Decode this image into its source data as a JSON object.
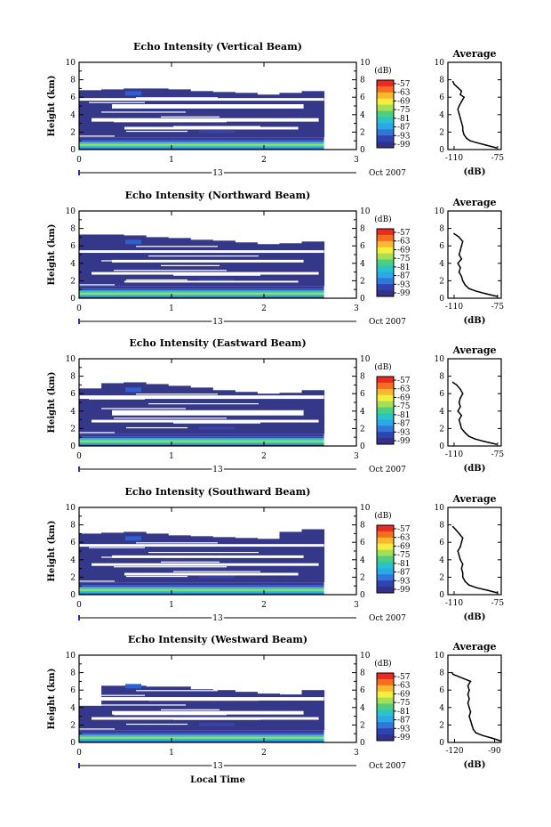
{
  "figure": {
    "xlabel": "Local Time",
    "date_label": "13",
    "month_label": "Oct 2007",
    "avg_title": "Average",
    "cbar_unit": "(dB)",
    "avg_xunit": "(dB)"
  },
  "chart_data": [
    {
      "type": "heatmap",
      "title": "Echo Intensity (Vertical Beam)",
      "ylabel": "Height (km)",
      "xlabel": "Local Time",
      "x_ticks": [
        "0",
        "1",
        "2",
        "3"
      ],
      "y_ticks": [
        "0",
        "2",
        "4",
        "6",
        "8",
        "10"
      ],
      "xlim": [
        0,
        3
      ],
      "ylim": [
        0,
        10
      ],
      "data_end_hour": 2.65,
      "colorbar": {
        "unit": "(dB)",
        "levels": [
          -57,
          -63,
          -69,
          -75,
          -81,
          -87,
          -93,
          -99
        ]
      },
      "cloud_top_km": [
        6.8,
        6.9,
        7.0,
        7.0,
        6.9,
        6.7,
        6.6,
        6.5,
        6.3,
        6.5,
        6.7
      ],
      "gaps_km": [
        [
          5.6,
          5.9
        ],
        [
          4.7,
          5.2
        ],
        [
          3.2,
          3.6
        ],
        [
          2.3,
          2.6
        ]
      ],
      "average_profile": {
        "title": "Average",
        "xlabel": "(dB)",
        "x_ticks": [
          "-110",
          "-75"
        ],
        "xlim": [
          -115,
          -72
        ],
        "y_ticks": [
          "0",
          "2",
          "4",
          "6",
          "8",
          "10"
        ],
        "height_km": [
          0.2,
          0.5,
          0.8,
          1.0,
          1.3,
          1.7,
          2.2,
          2.6,
          3.1,
          3.6,
          4.1,
          4.6,
          5.0,
          5.5,
          6.0,
          6.3,
          6.7,
          7.1,
          7.5,
          7.8
        ],
        "db": [
          -76,
          -84,
          -92,
          -97,
          -100,
          -102,
          -103,
          -103,
          -104,
          -105,
          -106,
          -107,
          -106,
          -104,
          -102,
          -105,
          -104,
          -107,
          -110,
          -111
        ]
      }
    },
    {
      "type": "heatmap",
      "title": "Echo Intensity (Northward Beam)",
      "ylabel": "Height (km)",
      "xlabel": "Local Time",
      "x_ticks": [
        "0",
        "1",
        "2",
        "3"
      ],
      "y_ticks": [
        "0",
        "2",
        "4",
        "6",
        "8",
        "10"
      ],
      "xlim": [
        0,
        3
      ],
      "ylim": [
        0,
        10
      ],
      "data_end_hour": 2.65,
      "colorbar": {
        "unit": "(dB)",
        "levels": [
          -57,
          -63,
          -69,
          -75,
          -81,
          -87,
          -93,
          -99
        ]
      },
      "cloud_top_km": [
        7.3,
        7.3,
        7.2,
        7.0,
        6.9,
        6.7,
        6.6,
        6.4,
        6.2,
        6.3,
        6.5
      ],
      "gaps_km": [
        [
          5.2,
          5.5
        ],
        [
          4.1,
          4.4
        ],
        [
          2.7,
          3.0
        ],
        [
          1.8,
          2.0
        ]
      ],
      "average_profile": {
        "title": "Average",
        "xlabel": "(dB)",
        "x_ticks": [
          "-110",
          "-75"
        ],
        "xlim": [
          -115,
          -72
        ],
        "y_ticks": [
          "0",
          "2",
          "4",
          "6",
          "8",
          "10"
        ],
        "height_km": [
          0.2,
          0.5,
          0.8,
          1.1,
          1.5,
          2.0,
          2.5,
          3.0,
          3.5,
          4.0,
          4.5,
          5.0,
          5.5,
          6.0,
          6.5,
          7.0,
          7.4
        ],
        "db": [
          -75,
          -84,
          -92,
          -98,
          -101,
          -103,
          -104,
          -106,
          -105,
          -107,
          -104,
          -106,
          -105,
          -104,
          -103,
          -106,
          -110
        ]
      }
    },
    {
      "type": "heatmap",
      "title": "Echo Intensity (Eastward Beam)",
      "ylabel": "Height (km)",
      "xlabel": "Local Time",
      "x_ticks": [
        "0",
        "1",
        "2",
        "3"
      ],
      "y_ticks": [
        "0",
        "2",
        "4",
        "6",
        "8",
        "10"
      ],
      "xlim": [
        0,
        3
      ],
      "ylim": [
        0,
        10
      ],
      "data_end_hour": 2.65,
      "colorbar": {
        "unit": "(dB)",
        "levels": [
          -57,
          -63,
          -69,
          -75,
          -81,
          -87,
          -93,
          -99
        ]
      },
      "cloud_top_km": [
        6.6,
        7.2,
        7.3,
        7.1,
        6.9,
        6.7,
        6.4,
        6.2,
        6.0,
        6.1,
        6.4
      ],
      "gaps_km": [
        [
          5.4,
          5.8
        ],
        [
          3.5,
          4.1
        ],
        [
          2.7,
          3.0
        ]
      ],
      "average_profile": {
        "title": "Average",
        "xlabel": "(dB)",
        "x_ticks": [
          "-110",
          "-75"
        ],
        "xlim": [
          -115,
          -72
        ],
        "y_ticks": [
          "0",
          "2",
          "4",
          "6",
          "8",
          "10"
        ],
        "height_km": [
          0.2,
          0.5,
          0.8,
          1.1,
          1.5,
          2.0,
          2.5,
          3.0,
          3.5,
          4.0,
          4.5,
          5.0,
          5.5,
          6.0,
          6.5,
          7.0,
          7.3
        ],
        "db": [
          -76,
          -85,
          -93,
          -98,
          -101,
          -104,
          -105,
          -106,
          -104,
          -107,
          -105,
          -106,
          -105,
          -103,
          -105,
          -108,
          -111
        ]
      }
    },
    {
      "type": "heatmap",
      "title": "Echo Intensity (Southward Beam)",
      "ylabel": "Height (km)",
      "xlabel": "Local Time",
      "x_ticks": [
        "0",
        "1",
        "2",
        "3"
      ],
      "y_ticks": [
        "0",
        "2",
        "4",
        "6",
        "8",
        "10"
      ],
      "xlim": [
        0,
        3
      ],
      "ylim": [
        0,
        10
      ],
      "data_end_hour": 2.65,
      "colorbar": {
        "unit": "(dB)",
        "levels": [
          -57,
          -63,
          -69,
          -75,
          -81,
          -87,
          -93,
          -99
        ]
      },
      "cloud_top_km": [
        7.0,
        7.1,
        7.2,
        7.0,
        6.8,
        6.7,
        6.6,
        6.5,
        6.4,
        7.2,
        7.5
      ],
      "gaps_km": [
        [
          5.5,
          5.8
        ],
        [
          4.2,
          4.5
        ],
        [
          3.3,
          3.6
        ],
        [
          2.2,
          2.5
        ]
      ],
      "average_profile": {
        "title": "Average",
        "xlabel": "(dB)",
        "x_ticks": [
          "-110",
          "-75"
        ],
        "xlim": [
          -115,
          -72
        ],
        "y_ticks": [
          "0",
          "2",
          "4",
          "6",
          "8",
          "10"
        ],
        "height_km": [
          0.2,
          0.5,
          0.8,
          1.1,
          1.5,
          2.0,
          2.5,
          3.0,
          3.5,
          4.0,
          4.5,
          5.0,
          5.5,
          6.0,
          6.5,
          7.0,
          7.5,
          7.8
        ],
        "db": [
          -75,
          -83,
          -92,
          -98,
          -101,
          -103,
          -103,
          -104,
          -103,
          -105,
          -106,
          -107,
          -105,
          -104,
          -103,
          -106,
          -109,
          -111
        ]
      }
    },
    {
      "type": "heatmap",
      "title": "Echo Intensity (Westward Beam)",
      "ylabel": "Height (km)",
      "xlabel": "Local Time",
      "x_ticks": [
        "0",
        "1",
        "2",
        "3"
      ],
      "y_ticks": [
        "0",
        "2",
        "4",
        "6",
        "8",
        "10"
      ],
      "xlim": [
        0,
        3
      ],
      "ylim": [
        0,
        10
      ],
      "data_end_hour": 2.65,
      "colorbar": {
        "unit": "(dB)",
        "levels": [
          -57,
          -63,
          -69,
          -75,
          -81,
          -87,
          -93,
          -99
        ]
      },
      "cloud_top_km": [
        4.2,
        6.5,
        6.5,
        6.4,
        6.4,
        6.1,
        6.0,
        5.8,
        5.6,
        5.5,
        6.0
      ],
      "gaps_km": [
        [
          4.8,
          5.2
        ],
        [
          3.2,
          3.6
        ],
        [
          2.6,
          2.9
        ]
      ],
      "average_profile": {
        "title": "Average",
        "xlabel": "(dB)",
        "x_ticks": [
          "-120",
          "-90"
        ],
        "xlim": [
          -125,
          -85
        ],
        "y_ticks": [
          "0",
          "2",
          "4",
          "6",
          "8",
          "10"
        ],
        "height_km": [
          0.2,
          0.5,
          0.8,
          1.1,
          1.5,
          2.0,
          2.5,
          3.0,
          3.5,
          4.0,
          4.5,
          5.0,
          5.5,
          6.0,
          6.5,
          7.0,
          7.8,
          8.0
        ],
        "db": [
          -86,
          -92,
          -99,
          -104,
          -106,
          -107,
          -108,
          -109,
          -108,
          -109,
          -110,
          -109,
          -110,
          -109,
          -110,
          -108,
          -121,
          -122
        ]
      }
    }
  ]
}
